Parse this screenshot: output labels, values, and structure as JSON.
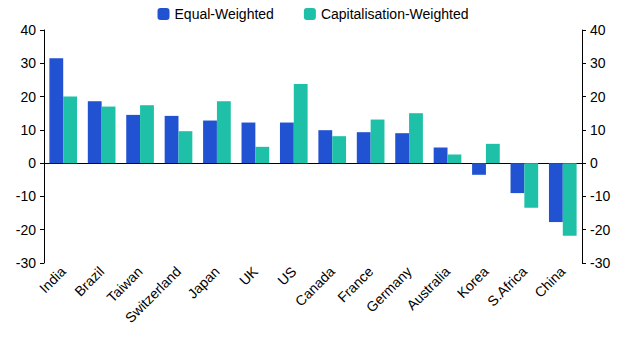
{
  "chart_data": {
    "type": "bar",
    "categories": [
      "India",
      "Brazil",
      "Taiwan",
      "Switzerland",
      "Japan",
      "UK",
      "US",
      "Canada",
      "France",
      "Germany",
      "Australia",
      "Korea",
      "S.Africa",
      "China"
    ],
    "series": [
      {
        "name": "Equal-Weighted",
        "color": "#2152d1",
        "values": [
          31.5,
          18.6,
          14.5,
          14.2,
          12.8,
          12.2,
          12.2,
          9.9,
          9.3,
          9.0,
          4.7,
          -3.5,
          -9.0,
          -17.7
        ]
      },
      {
        "name": "Capitalisation-Weighted",
        "color": "#1fc0a8",
        "values": [
          20.0,
          17.0,
          17.4,
          9.6,
          18.6,
          4.9,
          23.8,
          8.1,
          13.1,
          15.0,
          2.6,
          5.8,
          -13.4,
          -21.8
        ]
      }
    ],
    "ylim": [
      -30,
      40
    ],
    "yticks": [
      -30,
      -20,
      -10,
      0,
      10,
      20,
      30,
      40
    ],
    "y2lim": [
      -30,
      40
    ],
    "y2ticks": [
      -30,
      -20,
      -10,
      0,
      10,
      20,
      30,
      40
    ],
    "grid": false,
    "legend": "top"
  }
}
